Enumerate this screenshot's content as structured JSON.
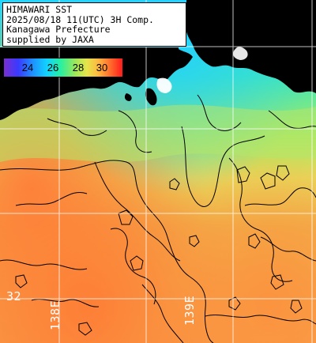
{
  "title": {
    "lines": [
      "HIMAWARI SST",
      "2025/08/18 11(UTC) 3H Comp.",
      "Kanagawa Prefecture",
      "supplied by JAXA"
    ]
  },
  "colorbar": {
    "ticks": [
      "24",
      "26",
      "28",
      "30"
    ]
  },
  "grid_labels": {
    "lat": "32",
    "lon_1": "138E",
    "lon_2": "139E"
  },
  "colors": {
    "land": "#000000",
    "coast_white": "#ffffff",
    "sst_cool": "#3ad7ff",
    "sst_mid": "#9be85a",
    "sst_warm": "#e6b850",
    "sst_hot": "#ff8a3a",
    "contour": "#000000",
    "grid": "#ffffff"
  }
}
